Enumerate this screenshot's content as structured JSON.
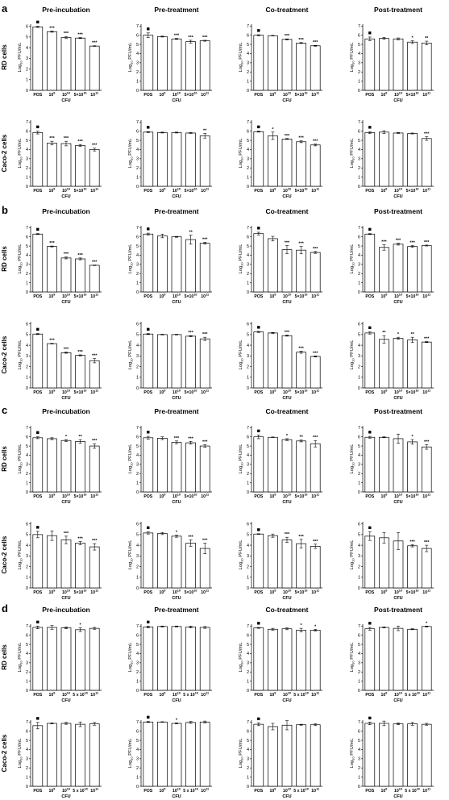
{
  "panels": [
    {
      "letter": "a",
      "columns": [
        "Pre-incubation",
        "Pre-treatment",
        "Co-treatment",
        "Post-treatment"
      ],
      "rows": [
        "RD cells",
        "Caco-2 cells"
      ]
    },
    {
      "letter": "b",
      "columns": [
        "Pre-incubation",
        "Pre-treatment",
        "Co-treatment",
        "Post-treatment"
      ],
      "rows": [
        "RD cells",
        "Caco-2 cells"
      ]
    },
    {
      "letter": "c",
      "columns": [
        "Pre-incubation",
        "Pre-treatment",
        "Co-treatment",
        "Post-treatment"
      ],
      "rows": [
        "RD cells",
        "Caco-2 cells"
      ]
    },
    {
      "letter": "d",
      "columns": [
        "Pre-incubation",
        "Pre-treatment",
        "Co-treatment",
        "Post-treatment"
      ],
      "rows": [
        "RD cells",
        "Caco-2 cells"
      ]
    }
  ],
  "axis": {
    "ylabel": "Log10 PFU/mL",
    "xlabel": "CFU",
    "categories_abc": [
      "POS",
      "10^9",
      "10^10",
      "5×10^10",
      "10^11"
    ],
    "categories_d": [
      "POS",
      "10^9",
      "10^10",
      "5 x 10^10",
      "10^11"
    ],
    "yticks": [
      0,
      1,
      2,
      3,
      4,
      5,
      6,
      7
    ],
    "pos_marker": "■"
  },
  "chart_data": [
    {
      "type": "bar",
      "panel": "a",
      "row": "RD cells",
      "column": "Pre-incubation",
      "ylim": [
        0,
        6
      ],
      "values": [
        5.95,
        5.5,
        4.95,
        4.9,
        4.15
      ],
      "errors": [
        0.05,
        0.05,
        0.1,
        0.05,
        0.03
      ],
      "stars": [
        "",
        "***",
        "***",
        "***",
        "***"
      ]
    },
    {
      "type": "bar",
      "panel": "a",
      "row": "RD cells",
      "column": "Pre-treatment",
      "ylim": [
        0,
        7
      ],
      "values": [
        6.0,
        5.85,
        5.6,
        5.3,
        5.4
      ],
      "errors": [
        0.25,
        0.05,
        0.05,
        0.15,
        0.05
      ],
      "stars": [
        "",
        "",
        "***",
        "***",
        "***"
      ]
    },
    {
      "type": "bar",
      "panel": "a",
      "row": "RD cells",
      "column": "Co-treatment",
      "ylim": [
        0,
        7
      ],
      "values": [
        6.0,
        5.95,
        5.55,
        5.15,
        4.85
      ],
      "errors": [
        0.05,
        0.03,
        0.05,
        0.05,
        0.05
      ],
      "stars": [
        "",
        "",
        "***",
        "***",
        "***"
      ]
    },
    {
      "type": "bar",
      "panel": "a",
      "row": "RD cells",
      "column": "Post-treatment",
      "ylim": [
        0,
        7
      ],
      "values": [
        5.6,
        5.65,
        5.6,
        5.25,
        5.15
      ],
      "errors": [
        0.2,
        0.1,
        0.1,
        0.15,
        0.2
      ],
      "stars": [
        "",
        "",
        "",
        "*",
        "**"
      ]
    },
    {
      "type": "bar",
      "panel": "a",
      "row": "Caco-2 cells",
      "column": "Pre-incubation",
      "ylim": [
        0,
        7
      ],
      "values": [
        5.85,
        4.7,
        4.65,
        4.45,
        4.0
      ],
      "errors": [
        0.15,
        0.2,
        0.25,
        0.1,
        0.15
      ],
      "stars": [
        "",
        "***",
        "***",
        "***",
        "***"
      ]
    },
    {
      "type": "bar",
      "panel": "a",
      "row": "Caco-2 cells",
      "column": "Pre-treatment",
      "ylim": [
        0,
        7
      ],
      "values": [
        5.9,
        5.85,
        5.85,
        5.8,
        5.5
      ],
      "errors": [
        0.05,
        0.05,
        0.05,
        0.05,
        0.25
      ],
      "stars": [
        "",
        "",
        "",
        "",
        "**"
      ]
    },
    {
      "type": "bar",
      "panel": "a",
      "row": "Caco-2 cells",
      "column": "Co-treatment",
      "ylim": [
        0,
        7
      ],
      "values": [
        5.95,
        5.5,
        5.15,
        4.85,
        4.5
      ],
      "errors": [
        0.05,
        0.4,
        0.05,
        0.1,
        0.1
      ],
      "stars": [
        "",
        "*",
        "***",
        "***",
        "***"
      ]
    },
    {
      "type": "bar",
      "panel": "a",
      "row": "Caco-2 cells",
      "column": "Post-treatment",
      "ylim": [
        0,
        7
      ],
      "values": [
        5.85,
        5.9,
        5.8,
        5.75,
        5.2
      ],
      "errors": [
        0.1,
        0.15,
        0.05,
        0.05,
        0.2
      ],
      "stars": [
        "",
        "",
        "",
        "",
        "***"
      ]
    },
    {
      "type": "bar",
      "panel": "b",
      "row": "RD cells",
      "column": "Pre-incubation",
      "ylim": [
        0,
        7
      ],
      "values": [
        6.3,
        4.95,
        3.7,
        3.6,
        2.9
      ],
      "errors": [
        0.05,
        0.05,
        0.1,
        0.1,
        0.03
      ],
      "stars": [
        "",
        "***",
        "***",
        "***",
        "***"
      ]
    },
    {
      "type": "bar",
      "panel": "b",
      "row": "RD cells",
      "column": "Pre-treatment",
      "ylim": [
        0,
        7
      ],
      "values": [
        6.3,
        6.1,
        6.0,
        5.7,
        5.3
      ],
      "errors": [
        0.1,
        0.2,
        0.05,
        0.5,
        0.1
      ],
      "stars": [
        "",
        "",
        "",
        "**",
        "***"
      ]
    },
    {
      "type": "bar",
      "panel": "b",
      "row": "RD cells",
      "column": "Co-treatment",
      "ylim": [
        0,
        7
      ],
      "values": [
        6.35,
        5.8,
        4.6,
        4.55,
        4.3
      ],
      "errors": [
        0.15,
        0.25,
        0.45,
        0.4,
        0.1
      ],
      "stars": [
        "",
        "",
        "***",
        "***",
        "***"
      ]
    },
    {
      "type": "bar",
      "panel": "b",
      "row": "RD cells",
      "column": "Post-treatment",
      "ylim": [
        0,
        7
      ],
      "values": [
        6.3,
        4.85,
        5.2,
        4.95,
        5.05
      ],
      "errors": [
        0.05,
        0.3,
        0.1,
        0.1,
        0.05
      ],
      "stars": [
        "",
        "***",
        "***",
        "***",
        "***"
      ]
    },
    {
      "type": "bar",
      "panel": "b",
      "row": "Caco-2 cells",
      "column": "Pre-incubation",
      "ylim": [
        0,
        6
      ],
      "values": [
        5.05,
        4.15,
        3.3,
        3.05,
        2.55
      ],
      "errors": [
        0.05,
        0.03,
        0.05,
        0.05,
        0.2
      ],
      "stars": [
        "",
        "***",
        "***",
        "***",
        "***"
      ]
    },
    {
      "type": "bar",
      "panel": "b",
      "row": "Caco-2 cells",
      "column": "Pre-treatment",
      "ylim": [
        0,
        6
      ],
      "values": [
        5.05,
        5.0,
        5.0,
        4.85,
        4.6
      ],
      "errors": [
        0.05,
        0.03,
        0.03,
        0.05,
        0.15
      ],
      "stars": [
        "",
        "",
        "",
        "***",
        "***"
      ]
    },
    {
      "type": "bar",
      "panel": "b",
      "row": "Caco-2 cells",
      "column": "Co-treatment",
      "ylim": [
        0,
        6
      ],
      "values": [
        5.25,
        5.15,
        4.9,
        3.35,
        2.95
      ],
      "errors": [
        0.05,
        0.05,
        0.05,
        0.1,
        0.05
      ],
      "stars": [
        "",
        "",
        "***",
        "***",
        "***"
      ]
    },
    {
      "type": "bar",
      "panel": "b",
      "row": "Caco-2 cells",
      "column": "Post-treatment",
      "ylim": [
        0,
        6
      ],
      "values": [
        5.15,
        4.55,
        4.65,
        4.5,
        4.3
      ],
      "errors": [
        0.1,
        0.35,
        0.1,
        0.25,
        0.05
      ],
      "stars": [
        "",
        "**",
        "*",
        "**",
        "***"
      ]
    },
    {
      "type": "bar",
      "panel": "c",
      "row": "RD cells",
      "column": "Pre-incubation",
      "ylim": [
        0,
        7
      ],
      "values": [
        5.9,
        5.8,
        5.6,
        5.5,
        5.0
      ],
      "errors": [
        0.1,
        0.1,
        0.1,
        0.2,
        0.25
      ],
      "stars": [
        "",
        "",
        "*",
        "**",
        "***"
      ]
    },
    {
      "type": "bar",
      "panel": "c",
      "row": "RD cells",
      "column": "Pre-treatment",
      "ylim": [
        0,
        7
      ],
      "values": [
        5.9,
        5.85,
        5.4,
        5.35,
        5.0
      ],
      "errors": [
        0.15,
        0.15,
        0.15,
        0.15,
        0.15
      ],
      "stars": [
        "",
        "",
        "***",
        "***",
        "***"
      ]
    },
    {
      "type": "bar",
      "panel": "c",
      "row": "RD cells",
      "column": "Co-treatment",
      "ylim": [
        0,
        7
      ],
      "values": [
        6.0,
        5.95,
        5.7,
        5.55,
        5.25
      ],
      "errors": [
        0.2,
        0.03,
        0.1,
        0.1,
        0.35
      ],
      "stars": [
        "",
        "",
        "*",
        "**",
        "***"
      ]
    },
    {
      "type": "bar",
      "panel": "c",
      "row": "RD cells",
      "column": "Post-treatment",
      "ylim": [
        0,
        7
      ],
      "values": [
        5.95,
        5.95,
        5.8,
        5.45,
        4.9
      ],
      "errors": [
        0.1,
        0.05,
        0.5,
        0.25,
        0.25
      ],
      "stars": [
        "",
        "",
        "",
        "*",
        "***"
      ]
    },
    {
      "type": "bar",
      "panel": "c",
      "row": "Caco-2 cells",
      "column": "Pre-incubation",
      "ylim": [
        0,
        6
      ],
      "values": [
        5.0,
        4.9,
        4.5,
        4.2,
        3.85
      ],
      "errors": [
        0.3,
        0.45,
        0.35,
        0.15,
        0.3
      ],
      "stars": [
        "",
        "",
        "***",
        "***",
        "***"
      ]
    },
    {
      "type": "bar",
      "panel": "c",
      "row": "Caco-2 cells",
      "column": "Pre-treatment",
      "ylim": [
        0,
        6
      ],
      "values": [
        5.15,
        5.1,
        4.85,
        4.2,
        3.7
      ],
      "errors": [
        0.1,
        0.1,
        0.1,
        0.3,
        0.5
      ],
      "stars": [
        "",
        "",
        "*",
        "***",
        "***"
      ]
    },
    {
      "type": "bar",
      "panel": "c",
      "row": "Caco-2 cells",
      "column": "Co-treatment",
      "ylim": [
        0,
        6
      ],
      "values": [
        5.05,
        4.9,
        4.5,
        4.15,
        3.9
      ],
      "errors": [
        0.03,
        0.15,
        0.25,
        0.4,
        0.2
      ],
      "stars": [
        "",
        "",
        "***",
        "***",
        "***"
      ]
    },
    {
      "type": "bar",
      "panel": "c",
      "row": "Caco-2 cells",
      "column": "Post-treatment",
      "ylim": [
        0,
        6
      ],
      "values": [
        4.85,
        4.7,
        4.4,
        3.95,
        3.7
      ],
      "errors": [
        0.4,
        0.5,
        0.8,
        0.1,
        0.3
      ],
      "stars": [
        "",
        "",
        "",
        "***",
        "***"
      ]
    },
    {
      "type": "bar",
      "panel": "d",
      "row": "RD cells",
      "column": "Pre-incubation",
      "ylim": [
        0,
        7
      ],
      "values": [
        6.85,
        6.85,
        6.8,
        6.6,
        6.75
      ],
      "errors": [
        0.15,
        0.2,
        0.1,
        0.2,
        0.1
      ],
      "stars": [
        "",
        "",
        "",
        "*",
        ""
      ]
    },
    {
      "type": "bar",
      "panel": "d",
      "row": "RD cells",
      "column": "Pre-treatment",
      "ylim": [
        0,
        7
      ],
      "values": [
        6.9,
        6.95,
        6.95,
        6.9,
        6.85
      ],
      "errors": [
        0.1,
        0.05,
        0.05,
        0.1,
        0.1
      ],
      "stars": [
        "",
        "",
        "",
        "",
        ""
      ]
    },
    {
      "type": "bar",
      "panel": "d",
      "row": "RD cells",
      "column": "Co-treatment",
      "ylim": [
        0,
        7
      ],
      "values": [
        6.8,
        6.65,
        6.7,
        6.55,
        6.55
      ],
      "errors": [
        0.05,
        0.1,
        0.1,
        0.2,
        0.1
      ],
      "stars": [
        "",
        "",
        "",
        "*",
        "*"
      ]
    },
    {
      "type": "bar",
      "panel": "d",
      "row": "RD cells",
      "column": "Post-treatment",
      "ylim": [
        0,
        7
      ],
      "values": [
        6.7,
        6.85,
        6.75,
        6.65,
        6.95
      ],
      "errors": [
        0.15,
        0.05,
        0.25,
        0.05,
        0.05
      ],
      "stars": [
        "",
        "",
        "",
        "",
        "*"
      ]
    },
    {
      "type": "bar",
      "panel": "d",
      "row": "Caco-2 cells",
      "column": "Pre-incubation",
      "ylim": [
        0,
        7
      ],
      "values": [
        6.6,
        6.85,
        6.85,
        6.75,
        6.8
      ],
      "errors": [
        0.35,
        0.05,
        0.1,
        0.25,
        0.15
      ],
      "stars": [
        "",
        "",
        "",
        "",
        ""
      ]
    },
    {
      "type": "bar",
      "panel": "d",
      "row": "Caco-2 cells",
      "column": "Pre-treatment",
      "ylim": [
        0,
        7
      ],
      "values": [
        7.0,
        7.0,
        6.85,
        6.95,
        7.0
      ],
      "errors": [
        0.05,
        0.03,
        0.05,
        0.1,
        0.1
      ],
      "stars": [
        "",
        "",
        "*",
        "",
        ""
      ]
    },
    {
      "type": "bar",
      "panel": "d",
      "row": "Caco-2 cells",
      "column": "Co-treatment",
      "ylim": [
        0,
        7
      ],
      "values": [
        6.75,
        6.5,
        6.65,
        6.7,
        6.7
      ],
      "errors": [
        0.15,
        0.35,
        0.5,
        0.05,
        0.1
      ],
      "stars": [
        "",
        "",
        "",
        "",
        ""
      ]
    },
    {
      "type": "bar",
      "panel": "d",
      "row": "Caco-2 cells",
      "column": "Post-treatment",
      "ylim": [
        0,
        7
      ],
      "values": [
        6.85,
        6.85,
        6.8,
        6.8,
        6.75
      ],
      "errors": [
        0.15,
        0.25,
        0.1,
        0.15,
        0.1
      ],
      "stars": [
        "",
        "",
        "",
        "",
        ""
      ]
    }
  ]
}
